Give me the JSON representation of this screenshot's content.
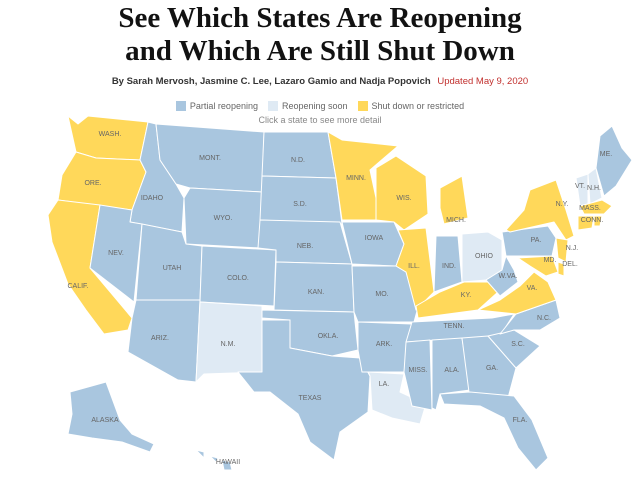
{
  "headline": {
    "line1": "See Which States Are Reopening",
    "line2": "and Which Are Still Shut Down"
  },
  "byline": {
    "authors": "By Sarah Mervosh, Jasmine C. Lee, Lazaro Gamio and Nadja Popovich",
    "updated": "Updated May 9, 2020"
  },
  "legend": {
    "items": [
      {
        "label": "Partial reopening",
        "color": "#a9c6df"
      },
      {
        "label": "Reopening soon",
        "color": "#dfeaf4"
      },
      {
        "label": "Shut down or restricted",
        "color": "#ffd85a"
      }
    ],
    "hint": "Click a state to see more detail"
  },
  "colors": {
    "partial": "#a9c6df",
    "soon": "#dfeaf4",
    "shut": "#ffd85a"
  },
  "states": [
    {
      "id": "WA",
      "label": "WASH.",
      "status": "shut"
    },
    {
      "id": "OR",
      "label": "ORE.",
      "status": "shut"
    },
    {
      "id": "CA",
      "label": "CALIF.",
      "status": "shut"
    },
    {
      "id": "ID",
      "label": "IDAHO",
      "status": "partial"
    },
    {
      "id": "NV",
      "label": "NEV.",
      "status": "partial"
    },
    {
      "id": "MT",
      "label": "MONT.",
      "status": "partial"
    },
    {
      "id": "WY",
      "label": "WYO.",
      "status": "partial"
    },
    {
      "id": "UT",
      "label": "UTAH",
      "status": "partial"
    },
    {
      "id": "AZ",
      "label": "ARIZ.",
      "status": "partial"
    },
    {
      "id": "CO",
      "label": "COLO.",
      "status": "partial"
    },
    {
      "id": "NM",
      "label": "N.M.",
      "status": "soon"
    },
    {
      "id": "ND",
      "label": "N.D.",
      "status": "partial"
    },
    {
      "id": "SD",
      "label": "S.D.",
      "status": "partial"
    },
    {
      "id": "NE",
      "label": "NEB.",
      "status": "partial"
    },
    {
      "id": "KS",
      "label": "KAN.",
      "status": "partial"
    },
    {
      "id": "OK",
      "label": "OKLA.",
      "status": "partial"
    },
    {
      "id": "TX",
      "label": "TEXAS",
      "status": "partial"
    },
    {
      "id": "MN",
      "label": "MINN.",
      "status": "shut"
    },
    {
      "id": "IA",
      "label": "IOWA",
      "status": "partial"
    },
    {
      "id": "MO",
      "label": "MO.",
      "status": "partial"
    },
    {
      "id": "AR",
      "label": "ARK.",
      "status": "partial"
    },
    {
      "id": "LA",
      "label": "LA.",
      "status": "soon"
    },
    {
      "id": "WI",
      "label": "WIS.",
      "status": "shut"
    },
    {
      "id": "IL",
      "label": "ILL.",
      "status": "shut"
    },
    {
      "id": "MI",
      "label": "MICH.",
      "status": "shut"
    },
    {
      "id": "IN",
      "label": "IND.",
      "status": "partial"
    },
    {
      "id": "OH",
      "label": "OHIO",
      "status": "soon"
    },
    {
      "id": "KY",
      "label": "KY.",
      "status": "shut"
    },
    {
      "id": "TN",
      "label": "TENN.",
      "status": "partial"
    },
    {
      "id": "MS",
      "label": "MISS.",
      "status": "partial"
    },
    {
      "id": "AL",
      "label": "ALA.",
      "status": "partial"
    },
    {
      "id": "GA",
      "label": "GA.",
      "status": "partial"
    },
    {
      "id": "FL",
      "label": "FLA.",
      "status": "partial"
    },
    {
      "id": "SC",
      "label": "S.C.",
      "status": "partial"
    },
    {
      "id": "NC",
      "label": "N.C.",
      "status": "partial"
    },
    {
      "id": "VA",
      "label": "VA.",
      "status": "shut"
    },
    {
      "id": "WV",
      "label": "W.VA.",
      "status": "partial"
    },
    {
      "id": "PA",
      "label": "PA.",
      "status": "partial"
    },
    {
      "id": "NY",
      "label": "N.Y.",
      "status": "shut"
    },
    {
      "id": "NJ",
      "label": "N.J.",
      "status": "shut"
    },
    {
      "id": "DE",
      "label": "DEL.",
      "status": "shut"
    },
    {
      "id": "MD",
      "label": "MD.",
      "status": "shut"
    },
    {
      "id": "VT",
      "label": "VT.",
      "status": "soon"
    },
    {
      "id": "NH",
      "label": "N.H.",
      "status": "soon"
    },
    {
      "id": "MA",
      "label": "MASS.",
      "status": "shut"
    },
    {
      "id": "CT",
      "label": "CONN.",
      "status": "shut"
    },
    {
      "id": "RI",
      "label": "",
      "status": "shut"
    },
    {
      "id": "ME",
      "label": "ME.",
      "status": "partial"
    },
    {
      "id": "AK",
      "label": "ALASKA",
      "status": "partial"
    },
    {
      "id": "HI",
      "label": "HAWAII",
      "status": "partial"
    }
  ]
}
